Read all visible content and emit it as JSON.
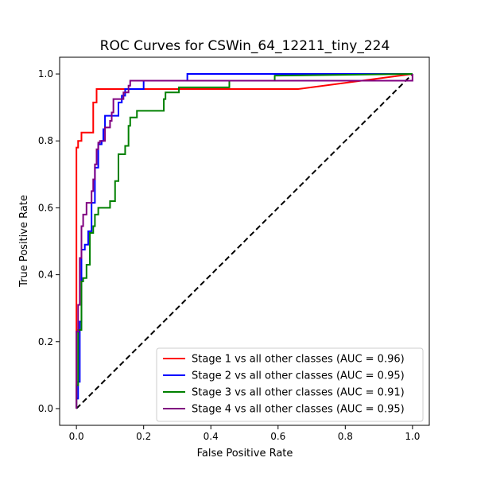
{
  "chart_data": {
    "type": "line",
    "title": "ROC Curves for CSWin_64_12211_tiny_224",
    "xlabel": "False Positive Rate",
    "ylabel": "True Positive Rate",
    "xlim": [
      -0.05,
      1.05
    ],
    "ylim": [
      -0.05,
      1.05
    ],
    "x_ticks": [
      "0.0",
      "0.2",
      "0.4",
      "0.6",
      "0.8",
      "1.0"
    ],
    "y_ticks": [
      "0.0",
      "0.2",
      "0.4",
      "0.6",
      "0.8",
      "1.0"
    ],
    "grid": false,
    "legend_position": "lower-right",
    "diagonal": {
      "points": [
        [
          0,
          0
        ],
        [
          1,
          1
        ]
      ],
      "color": "#000000",
      "style": "dashed"
    },
    "series": [
      {
        "name": "Stage 1 vs all other classes (AUC = 0.96)",
        "color": "#ff0000",
        "points": [
          [
            0,
            0
          ],
          [
            0,
            0.78
          ],
          [
            0.005,
            0.78
          ],
          [
            0.005,
            0.8
          ],
          [
            0.015,
            0.8
          ],
          [
            0.015,
            0.825
          ],
          [
            0.05,
            0.825
          ],
          [
            0.05,
            0.915
          ],
          [
            0.06,
            0.915
          ],
          [
            0.06,
            0.955
          ],
          [
            0.15,
            0.955
          ],
          [
            0.15,
            0.955
          ],
          [
            0.66,
            0.955
          ],
          [
            1,
            1
          ]
        ]
      },
      {
        "name": "Stage 2 vs all other classes (AUC = 0.95)",
        "color": "#0000ff",
        "points": [
          [
            0,
            0
          ],
          [
            0,
            0.03
          ],
          [
            0.005,
            0.03
          ],
          [
            0.005,
            0.08
          ],
          [
            0.01,
            0.08
          ],
          [
            0.01,
            0.26
          ],
          [
            0.015,
            0.26
          ],
          [
            0.015,
            0.475
          ],
          [
            0.025,
            0.475
          ],
          [
            0.025,
            0.49
          ],
          [
            0.035,
            0.49
          ],
          [
            0.035,
            0.53
          ],
          [
            0.045,
            0.53
          ],
          [
            0.045,
            0.615
          ],
          [
            0.055,
            0.615
          ],
          [
            0.055,
            0.72
          ],
          [
            0.065,
            0.72
          ],
          [
            0.065,
            0.79
          ],
          [
            0.075,
            0.79
          ],
          [
            0.075,
            0.8
          ],
          [
            0.08,
            0.8
          ],
          [
            0.08,
            0.835
          ],
          [
            0.085,
            0.835
          ],
          [
            0.085,
            0.875
          ],
          [
            0.105,
            0.875
          ],
          [
            0.105,
            0.875
          ],
          [
            0.125,
            0.875
          ],
          [
            0.125,
            0.915
          ],
          [
            0.135,
            0.915
          ],
          [
            0.135,
            0.935
          ],
          [
            0.145,
            0.935
          ],
          [
            0.145,
            0.955
          ],
          [
            0.2,
            0.955
          ],
          [
            0.2,
            0.98
          ],
          [
            0.21,
            0.98
          ],
          [
            0.21,
            0.98
          ],
          [
            0.28,
            0.98
          ],
          [
            0.28,
            0.98
          ],
          [
            0.33,
            0.98
          ],
          [
            0.33,
            1.0
          ],
          [
            1,
            1
          ]
        ]
      },
      {
        "name": "Stage 3 vs all other classes (AUC = 0.91)",
        "color": "#008000",
        "points": [
          [
            0,
            0
          ],
          [
            0,
            0.07
          ],
          [
            0.005,
            0.07
          ],
          [
            0.005,
            0.235
          ],
          [
            0.015,
            0.235
          ],
          [
            0.015,
            0.38
          ],
          [
            0.02,
            0.38
          ],
          [
            0.02,
            0.39
          ],
          [
            0.03,
            0.39
          ],
          [
            0.03,
            0.43
          ],
          [
            0.04,
            0.43
          ],
          [
            0.04,
            0.525
          ],
          [
            0.05,
            0.525
          ],
          [
            0.05,
            0.545
          ],
          [
            0.055,
            0.545
          ],
          [
            0.055,
            0.58
          ],
          [
            0.065,
            0.58
          ],
          [
            0.065,
            0.6
          ],
          [
            0.1,
            0.6
          ],
          [
            0.1,
            0.62
          ],
          [
            0.115,
            0.62
          ],
          [
            0.115,
            0.68
          ],
          [
            0.125,
            0.68
          ],
          [
            0.125,
            0.76
          ],
          [
            0.145,
            0.76
          ],
          [
            0.145,
            0.785
          ],
          [
            0.155,
            0.785
          ],
          [
            0.155,
            0.845
          ],
          [
            0.16,
            0.845
          ],
          [
            0.16,
            0.87
          ],
          [
            0.18,
            0.87
          ],
          [
            0.18,
            0.89
          ],
          [
            0.26,
            0.89
          ],
          [
            0.26,
            0.925
          ],
          [
            0.265,
            0.925
          ],
          [
            0.265,
            0.945
          ],
          [
            0.305,
            0.945
          ],
          [
            0.305,
            0.96
          ],
          [
            0.455,
            0.96
          ],
          [
            0.455,
            0.98
          ],
          [
            0.59,
            0.98
          ],
          [
            0.59,
            0.995
          ],
          [
            1,
            1
          ]
        ]
      },
      {
        "name": "Stage 4 vs all other classes (AUC = 0.95)",
        "color": "#800080",
        "points": [
          [
            0,
            0
          ],
          [
            0,
            0.23
          ],
          [
            0.005,
            0.23
          ],
          [
            0.005,
            0.31
          ],
          [
            0.01,
            0.31
          ],
          [
            0.01,
            0.45
          ],
          [
            0.015,
            0.45
          ],
          [
            0.015,
            0.545
          ],
          [
            0.02,
            0.545
          ],
          [
            0.02,
            0.58
          ],
          [
            0.03,
            0.58
          ],
          [
            0.03,
            0.615
          ],
          [
            0.045,
            0.615
          ],
          [
            0.045,
            0.65
          ],
          [
            0.05,
            0.65
          ],
          [
            0.05,
            0.685
          ],
          [
            0.055,
            0.685
          ],
          [
            0.055,
            0.73
          ],
          [
            0.06,
            0.73
          ],
          [
            0.06,
            0.775
          ],
          [
            0.065,
            0.775
          ],
          [
            0.065,
            0.795
          ],
          [
            0.07,
            0.795
          ],
          [
            0.07,
            0.8
          ],
          [
            0.085,
            0.8
          ],
          [
            0.085,
            0.84
          ],
          [
            0.1,
            0.84
          ],
          [
            0.1,
            0.86
          ],
          [
            0.105,
            0.86
          ],
          [
            0.105,
            0.885
          ],
          [
            0.11,
            0.885
          ],
          [
            0.11,
            0.925
          ],
          [
            0.14,
            0.925
          ],
          [
            0.14,
            0.945
          ],
          [
            0.155,
            0.945
          ],
          [
            0.155,
            0.965
          ],
          [
            0.16,
            0.965
          ],
          [
            0.16,
            0.98
          ],
          [
            1,
            0.98
          ],
          [
            1,
            1
          ]
        ]
      }
    ]
  }
}
